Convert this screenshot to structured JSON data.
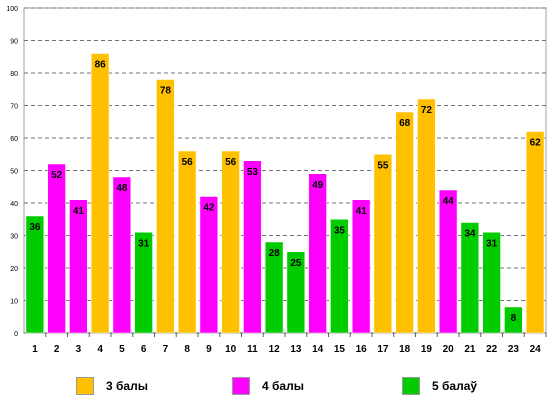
{
  "chart_data": {
    "type": "bar",
    "categories": [
      "1",
      "2",
      "3",
      "4",
      "5",
      "6",
      "7",
      "8",
      "9",
      "10",
      "11",
      "12",
      "13",
      "14",
      "15",
      "16",
      "17",
      "18",
      "19",
      "20",
      "21",
      "22",
      "23",
      "24"
    ],
    "values": [
      36,
      52,
      41,
      86,
      48,
      31,
      78,
      56,
      42,
      56,
      53,
      28,
      25,
      49,
      35,
      41,
      55,
      68,
      72,
      44,
      34,
      31,
      8,
      62
    ],
    "category_group": [
      "5",
      "4",
      "4",
      "3",
      "4",
      "5",
      "3",
      "3",
      "4",
      "3",
      "4",
      "5",
      "5",
      "4",
      "5",
      "4",
      "3",
      "3",
      "3",
      "4",
      "5",
      "5",
      "5",
      "3"
    ],
    "ylim": [
      0,
      100
    ],
    "yticks": [
      "0",
      "10",
      "20",
      "30",
      "40",
      "50",
      "60",
      "70",
      "80",
      "90",
      "100"
    ],
    "grid": true,
    "legend_position": "bottom",
    "legend": [
      {
        "key": "3",
        "label": "3 балы",
        "color": "#FFC000"
      },
      {
        "key": "4",
        "label": "4 балы",
        "color": "#FF00FF"
      },
      {
        "key": "5",
        "label": "5 балаў",
        "color": "#00CC00"
      }
    ]
  }
}
